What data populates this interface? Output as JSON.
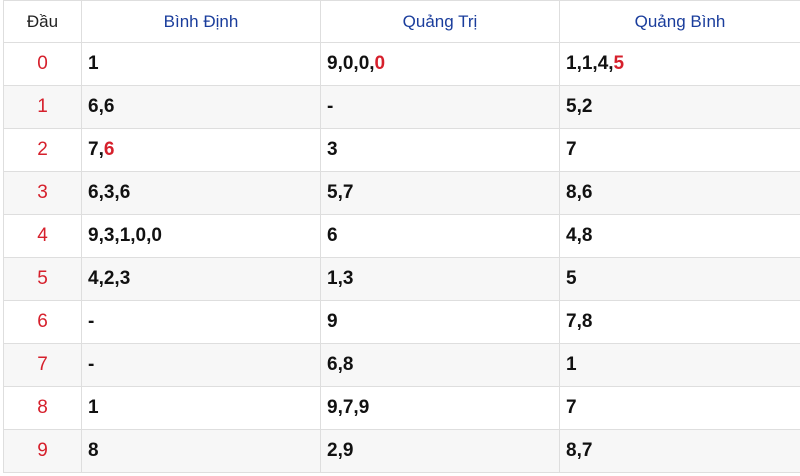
{
  "columns": {
    "head": "Đầu",
    "prov1": "Bình Định",
    "prov2": "Quảng Trị",
    "prov3": "Quảng Bình"
  },
  "rows": [
    {
      "head": "0",
      "prov1": {
        "text": "1",
        "special": ""
      },
      "prov2": {
        "text": "9,0,0,",
        "special": "0"
      },
      "prov3": {
        "text": "1,1,4,",
        "special": "5"
      }
    },
    {
      "head": "1",
      "prov1": {
        "text": "6,6",
        "special": ""
      },
      "prov2": {
        "text": "-",
        "special": ""
      },
      "prov3": {
        "text": "5,2",
        "special": ""
      }
    },
    {
      "head": "2",
      "prov1": {
        "text": "7,",
        "special": "6"
      },
      "prov2": {
        "text": "3",
        "special": ""
      },
      "prov3": {
        "text": "7",
        "special": ""
      }
    },
    {
      "head": "3",
      "prov1": {
        "text": "6,3,6",
        "special": ""
      },
      "prov2": {
        "text": "5,7",
        "special": ""
      },
      "prov3": {
        "text": "8,6",
        "special": ""
      }
    },
    {
      "head": "4",
      "prov1": {
        "text": "9,3,1,0,0",
        "special": ""
      },
      "prov2": {
        "text": "6",
        "special": ""
      },
      "prov3": {
        "text": "4,8",
        "special": ""
      }
    },
    {
      "head": "5",
      "prov1": {
        "text": "4,2,3",
        "special": ""
      },
      "prov2": {
        "text": "1,3",
        "special": ""
      },
      "prov3": {
        "text": "5",
        "special": ""
      }
    },
    {
      "head": "6",
      "prov1": {
        "text": "-",
        "special": ""
      },
      "prov2": {
        "text": "9",
        "special": ""
      },
      "prov3": {
        "text": "7,8",
        "special": ""
      }
    },
    {
      "head": "7",
      "prov1": {
        "text": "-",
        "special": ""
      },
      "prov2": {
        "text": "6,8",
        "special": ""
      },
      "prov3": {
        "text": "1",
        "special": ""
      }
    },
    {
      "head": "8",
      "prov1": {
        "text": "1",
        "special": ""
      },
      "prov2": {
        "text": "9,7,9",
        "special": ""
      },
      "prov3": {
        "text": "7",
        "special": ""
      }
    },
    {
      "head": "9",
      "prov1": {
        "text": "8",
        "special": ""
      },
      "prov2": {
        "text": "2,9",
        "special": ""
      },
      "prov3": {
        "text": "8,7",
        "special": ""
      }
    }
  ],
  "colors": {
    "header_text": "#1a3d9c",
    "head_digit": "#d6202c",
    "special_number": "#d6202c",
    "border": "#dedede"
  }
}
